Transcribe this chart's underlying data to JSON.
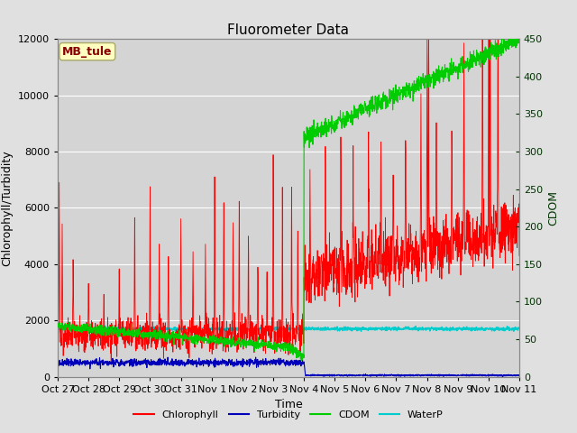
{
  "title": "Fluorometer Data",
  "xlabel": "Time",
  "ylabel_left": "Chlorophyll/Turbidity",
  "ylabel_right": "CDOM",
  "annotation": "MB_tule",
  "xlim_days": [
    0,
    15
  ],
  "ylim_left": [
    0,
    12000
  ],
  "ylim_right": [
    0,
    450
  ],
  "fig_bg_color": "#e0e0e0",
  "plot_bg_color": "#d4d4d4",
  "xtick_labels": [
    "Oct 27",
    "Oct 28",
    "Oct 29",
    "Oct 30",
    "Oct 31",
    "Nov 1",
    "Nov 2",
    "Nov 3",
    "Nov 4",
    "Nov 5",
    "Nov 6",
    "Nov 7",
    "Nov 8",
    "Nov 9",
    "Nov 10",
    "Nov 11"
  ],
  "xtick_positions": [
    0,
    1,
    2,
    3,
    4,
    5,
    6,
    7,
    8,
    9,
    10,
    11,
    12,
    13,
    14,
    15
  ],
  "series_colors": {
    "chlorophyll": "#ff0000",
    "turbidity": "#0000bb",
    "cdom": "#00cc00",
    "waterp": "#00cccc"
  },
  "legend_labels": [
    "Chlorophyll",
    "Turbidity",
    "CDOM",
    "WaterP"
  ],
  "title_fontsize": 11,
  "axis_fontsize": 9,
  "tick_fontsize": 8,
  "annotation_fontsize": 9,
  "annotation_color": "#880000",
  "annotation_bg": "#ffffc0",
  "annotation_edge": "#aaaa66",
  "grid_color": "#ffffff",
  "right_axis_tick_color": "#004400",
  "yticks_left": [
    0,
    2000,
    4000,
    6000,
    8000,
    10000,
    12000
  ],
  "yticks_right": [
    0,
    50,
    100,
    150,
    200,
    250,
    300,
    350,
    400,
    450
  ]
}
